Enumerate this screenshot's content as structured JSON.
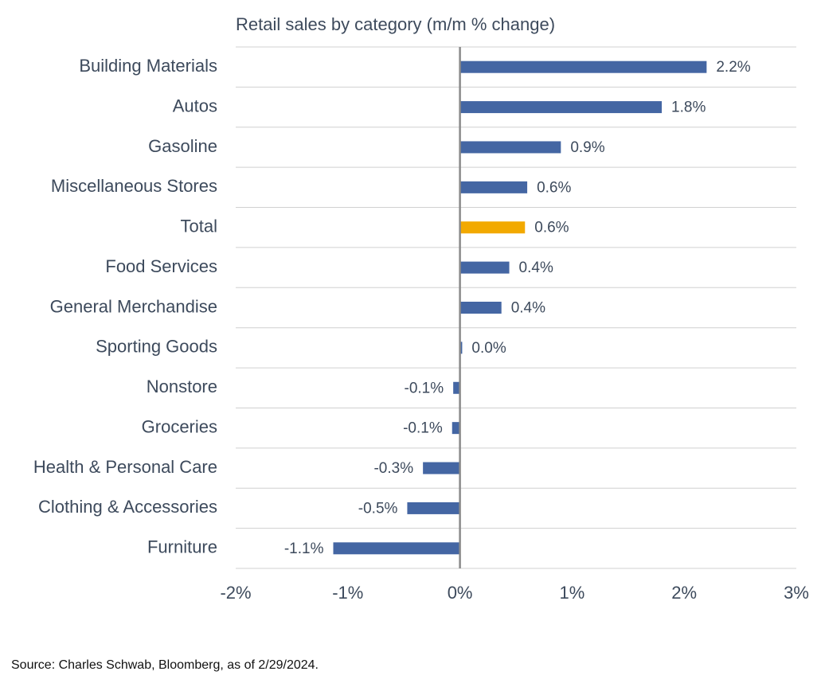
{
  "chart_data": {
    "type": "hbar",
    "title": "Retail sales by category (m/m % change)",
    "source": "Source: Charles Schwab, Bloomberg, as of 2/29/2024.",
    "categories": [
      "Building Materials",
      "Autos",
      "Gasoline",
      "Miscellaneous Stores",
      "Total",
      "Food Services",
      "General Merchandise",
      "Sporting Goods",
      "Nonstore",
      "Groceries",
      "Health & Personal Care",
      "Clothing & Accessories",
      "Furniture"
    ],
    "values": [
      2.2,
      1.8,
      0.9,
      0.6,
      0.58,
      0.44,
      0.37,
      0.02,
      -0.06,
      -0.07,
      -0.33,
      -0.47,
      -1.13
    ],
    "value_labels": [
      "2.2%",
      "1.8%",
      "0.9%",
      "0.6%",
      "0.6%",
      "0.4%",
      "0.4%",
      "0.0%",
      "-0.1%",
      "-0.1%",
      "-0.3%",
      "-0.5%",
      "-1.1%"
    ],
    "colors": [
      "#4466a3",
      "#4466a3",
      "#4466a3",
      "#4466a3",
      "#f2a900",
      "#4466a3",
      "#4466a3",
      "#4466a3",
      "#4466a3",
      "#4466a3",
      "#4466a3",
      "#4466a3",
      "#4466a3"
    ],
    "xlim": [
      -2,
      3
    ],
    "xticks": [
      {
        "value": -2,
        "label": "-2%"
      },
      {
        "value": -1,
        "label": "-1%"
      },
      {
        "value": 0,
        "label": "0%"
      },
      {
        "value": 1,
        "label": "1%"
      },
      {
        "value": 2,
        "label": "2%"
      },
      {
        "value": 3,
        "label": "3%"
      }
    ]
  }
}
